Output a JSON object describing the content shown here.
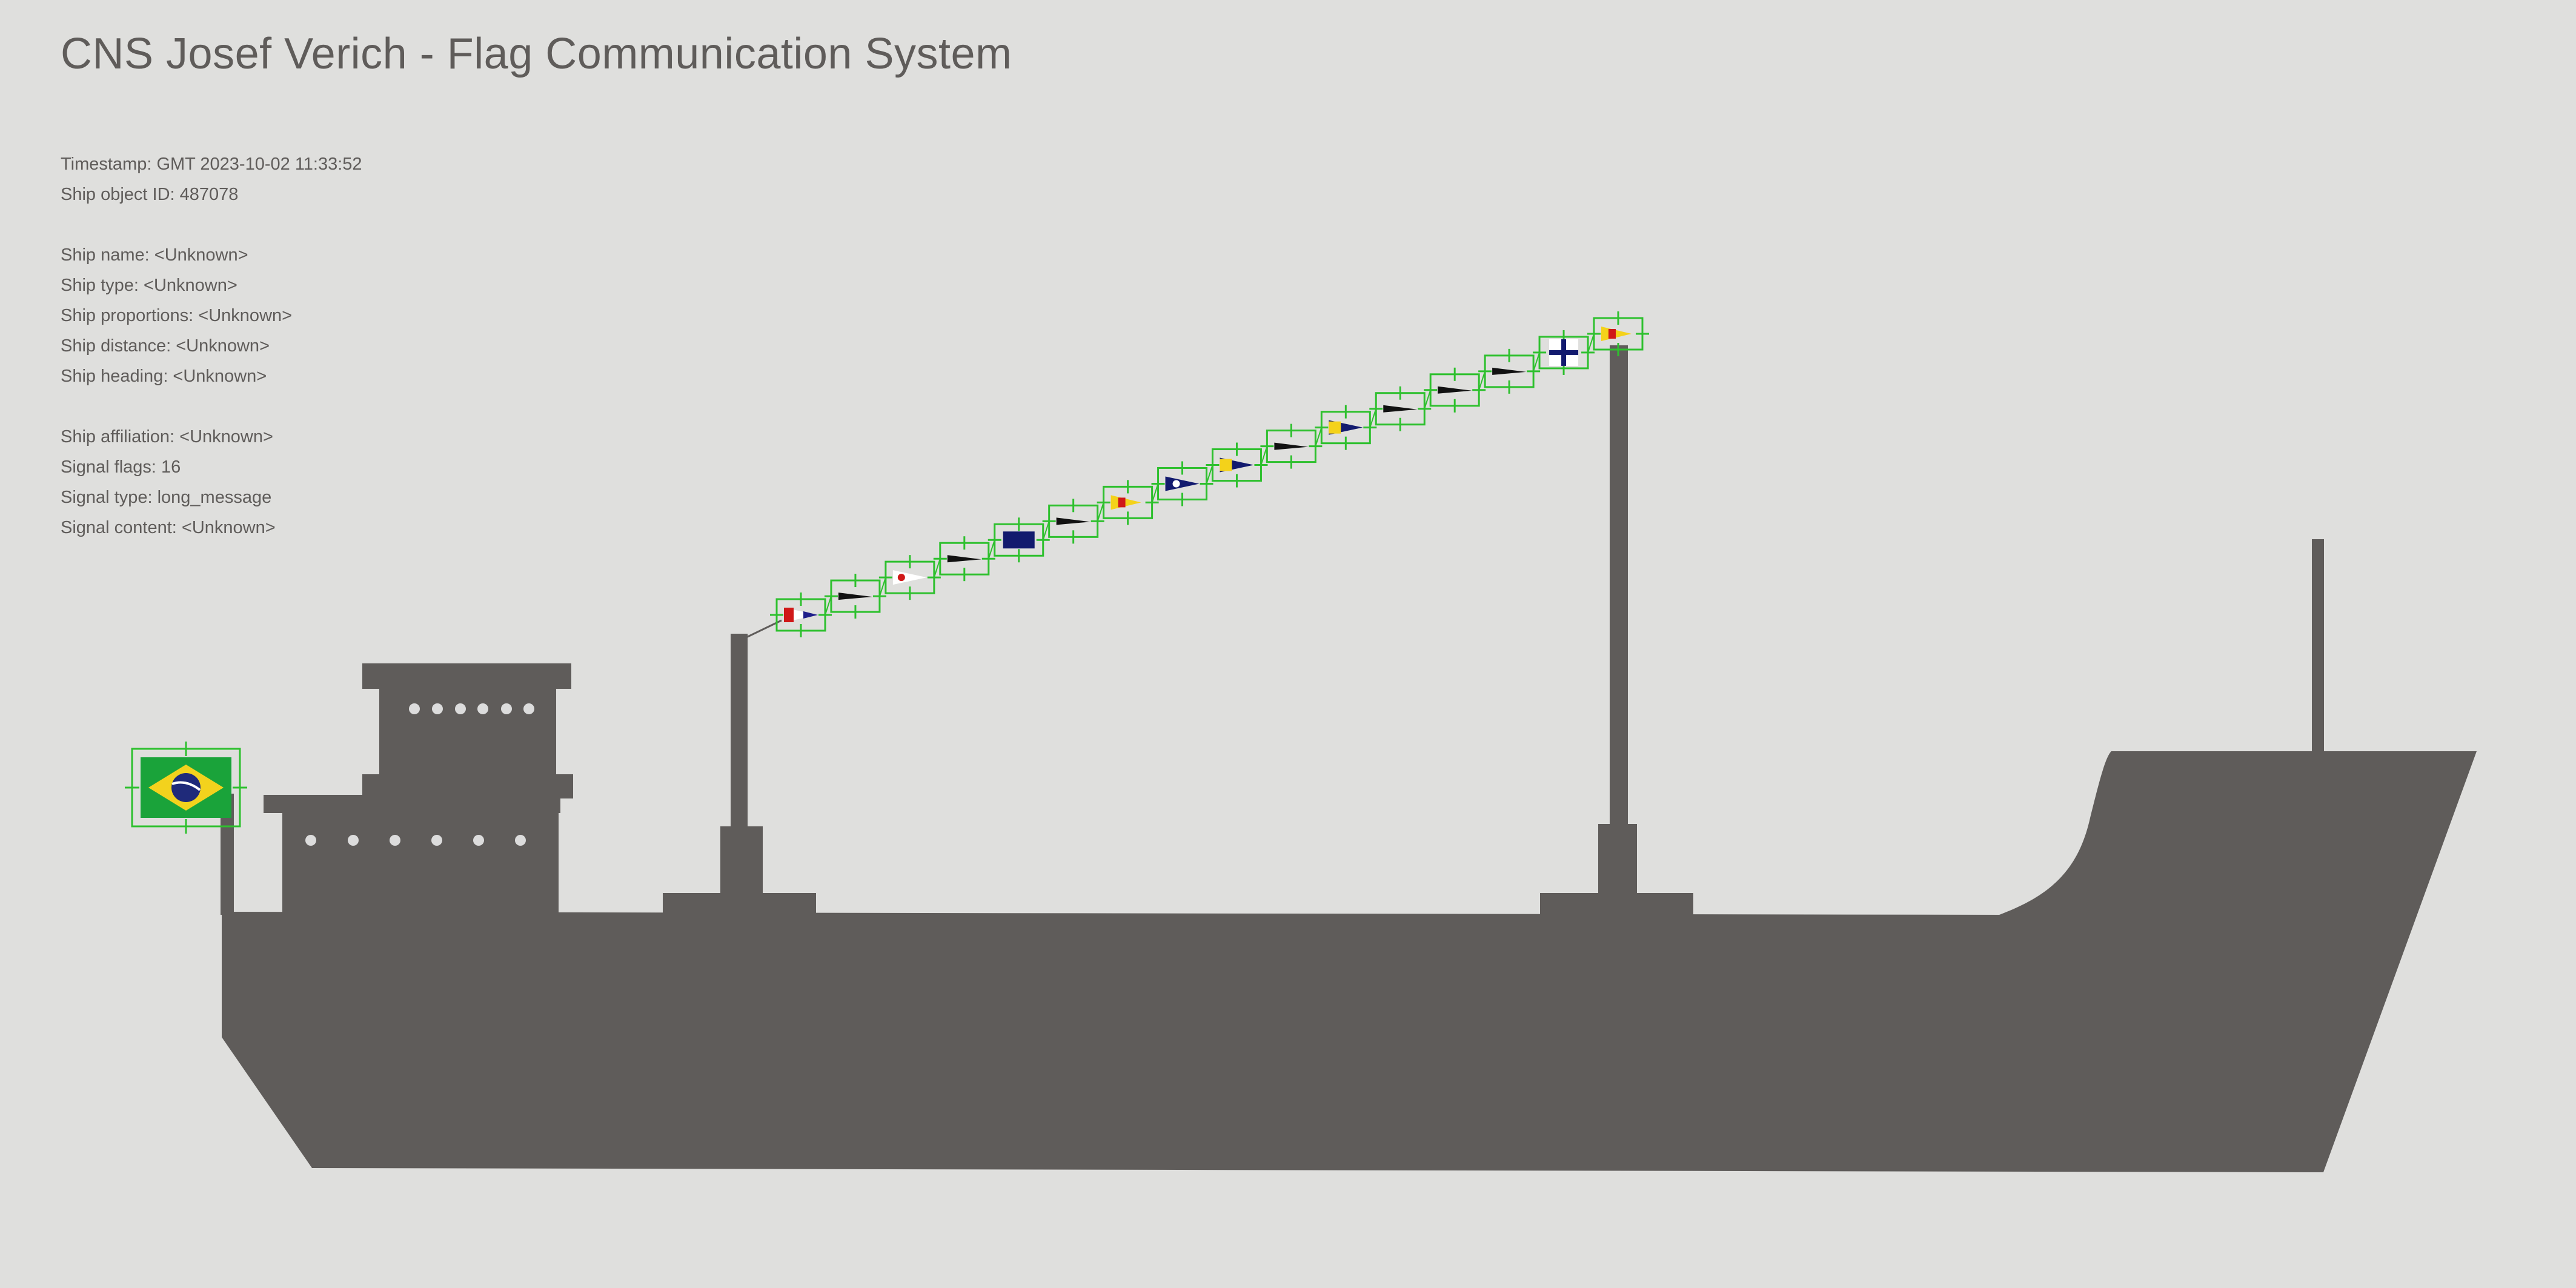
{
  "title": "CNS Josef Verich - Flag Communication System",
  "info": {
    "timestamp": "Timestamp: GMT 2023-10-02 11:33:52",
    "object_id": "Ship object ID: 487078",
    "name": "Ship name: <Unknown>",
    "type": "Ship type: <Unknown>",
    "proportions": "Ship proportions: <Unknown>",
    "distance": "Ship distance: <Unknown>",
    "heading": "Ship heading: <Unknown>",
    "affiliation": "Ship affiliation: <Unknown>",
    "signal_flags": "Signal flags: 16",
    "signal_type": "Signal type: long_message",
    "signal_content": "Signal content: <Unknown>"
  },
  "colors": {
    "background": "#dfdfdd",
    "ship": "#5f5c5a",
    "detection_box": "#2ec02e",
    "window_light": "#dcdcdc"
  },
  "ensign": {
    "icon": "brazil-flag-icon"
  },
  "signal_flags": [
    {
      "icon": "red-white-blue-pennant-icon"
    },
    {
      "icon": "black-pennant-icon"
    },
    {
      "icon": "white-red-dot-pennant-icon"
    },
    {
      "icon": "black-pennant-icon"
    },
    {
      "icon": "blue-flag-icon"
    },
    {
      "icon": "black-pennant-icon"
    },
    {
      "icon": "yellow-red-pennant-icon"
    },
    {
      "icon": "blue-white-dot-pennant-icon"
    },
    {
      "icon": "yellow-blue-pennant-icon"
    },
    {
      "icon": "black-pennant-icon"
    },
    {
      "icon": "yellow-blue-pennant-icon"
    },
    {
      "icon": "black-pennant-icon"
    },
    {
      "icon": "black-pennant-icon"
    },
    {
      "icon": "black-pennant-icon"
    },
    {
      "icon": "blue-cross-flag-icon"
    },
    {
      "icon": "yellow-red-pennant-icon"
    }
  ]
}
